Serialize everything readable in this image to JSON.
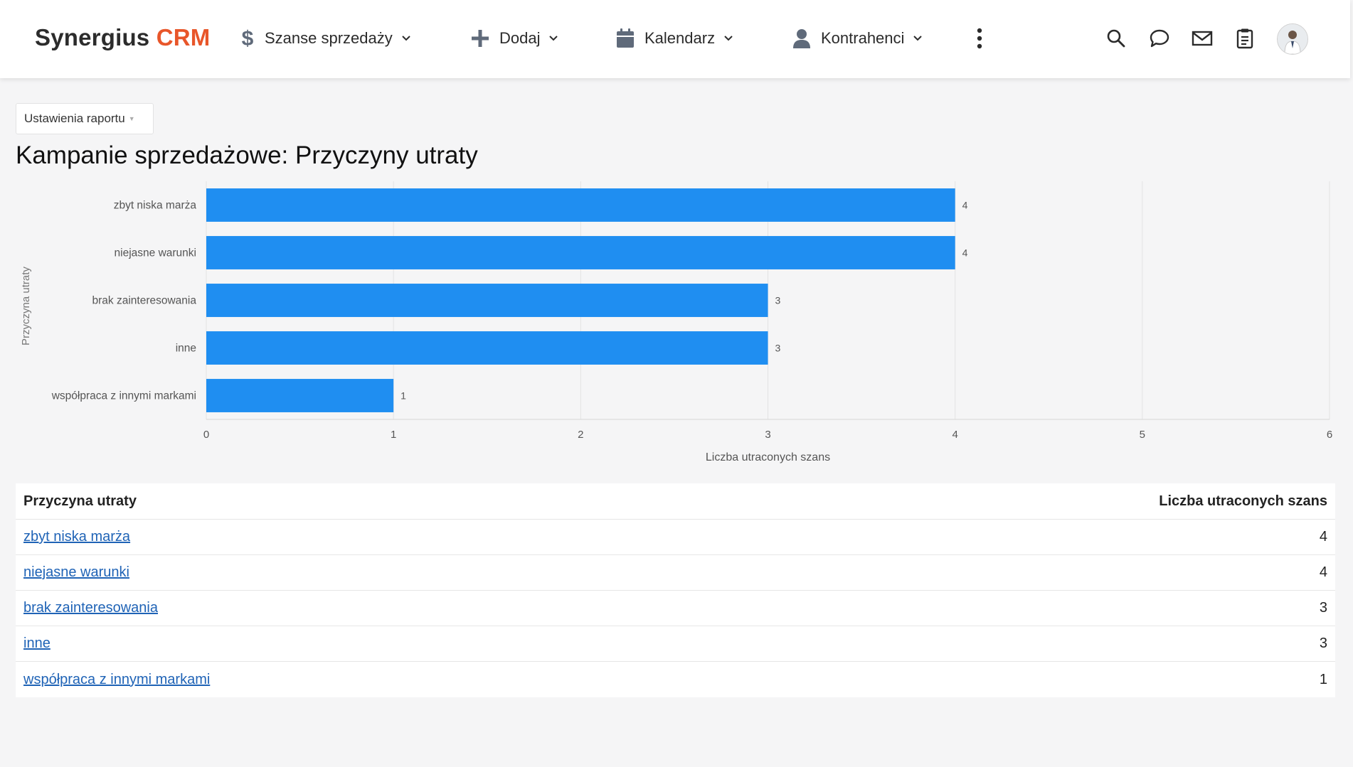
{
  "header": {
    "brand_main": "Synergius",
    "brand_accent": "CRM",
    "nav": [
      {
        "label": "Szanse sprzedaży",
        "icon": "dollar-icon"
      },
      {
        "label": "Dodaj",
        "icon": "plus-icon"
      },
      {
        "label": "Kalendarz",
        "icon": "calendar-icon"
      },
      {
        "label": "Kontrahenci",
        "icon": "person-icon"
      }
    ],
    "right_icons": [
      "search-icon",
      "chat-icon",
      "mail-icon",
      "clipboard-icon"
    ]
  },
  "toolbar": {
    "settings_label": "Ustawienia raportu"
  },
  "page": {
    "title": "Kampanie sprzedażowe: Przyczyny utraty"
  },
  "chart_data": {
    "type": "bar",
    "orientation": "horizontal",
    "categories": [
      "zbyt niska marża",
      "niejasne warunki",
      "brak zainteresowania",
      "inne",
      "współpraca z innymi markami"
    ],
    "values": [
      4,
      4,
      3,
      3,
      1
    ],
    "xlabel": "Liczba utraconych szans",
    "ylabel": "Przyczyna utraty",
    "xlim": [
      0,
      6
    ],
    "xticks": [
      0,
      1,
      2,
      3,
      4,
      5,
      6
    ],
    "grid": true,
    "bar_color": "#1f8ef1"
  },
  "table": {
    "headers": [
      "Przyczyna utraty",
      "Liczba utraconych szans"
    ],
    "rows": [
      {
        "reason": "zbyt niska marża",
        "count": "4"
      },
      {
        "reason": "niejasne warunki",
        "count": "4"
      },
      {
        "reason": "brak zainteresowania",
        "count": "3"
      },
      {
        "reason": "inne",
        "count": "3"
      },
      {
        "reason": "współpraca z innymi markami",
        "count": "1"
      }
    ]
  }
}
